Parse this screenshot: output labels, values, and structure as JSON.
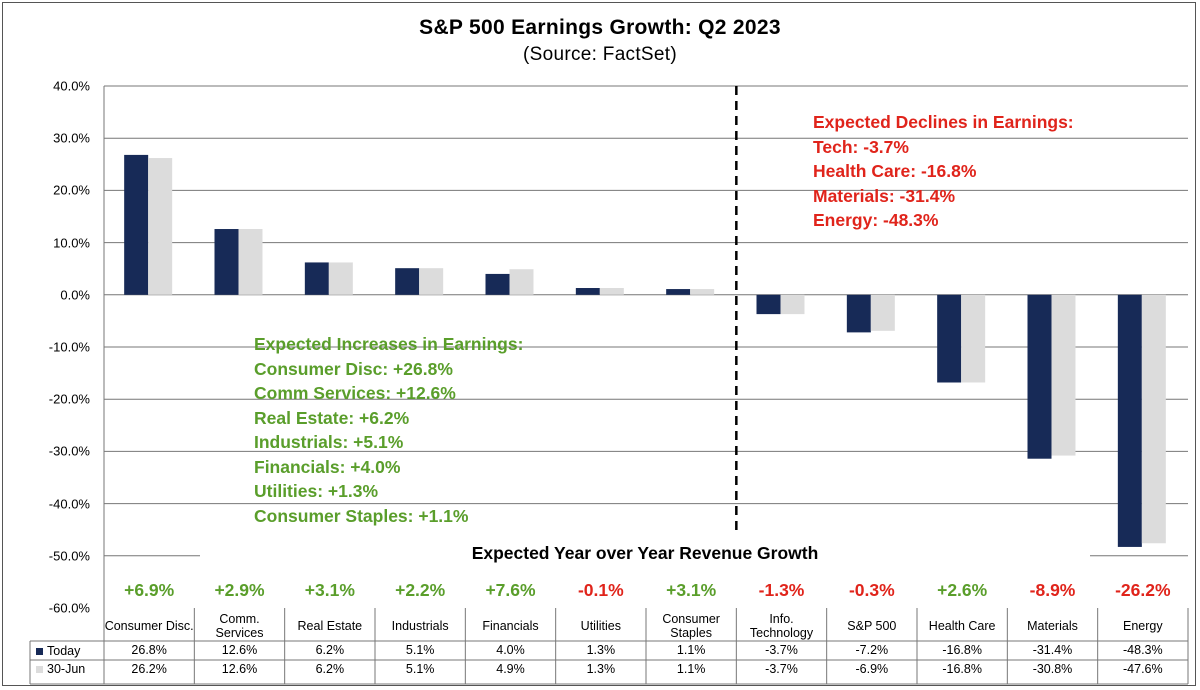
{
  "colors": {
    "today": "#172a57",
    "jun30": "#dcdcdc",
    "positive": "#5a9e2b",
    "negative": "#e0241b"
  },
  "chart_data": {
    "type": "bar",
    "title": "S&P 500 Earnings Growth: Q2 2023",
    "subtitle": "(Source: FactSet)",
    "ylim": [
      -60,
      40
    ],
    "yticks": [
      "40.0%",
      "30.0%",
      "20.0%",
      "10.0%",
      "0.0%",
      "-10.0%",
      "-20.0%",
      "-30.0%",
      "-40.0%",
      "-50.0%",
      "-60.0%"
    ],
    "categories": [
      "Consumer Disc.",
      "Comm. Services",
      "Real Estate",
      "Industrials",
      "Financials",
      "Utilities",
      "Consumer Staples",
      "Info. Technology",
      "S&P 500",
      "Health Care",
      "Materials",
      "Energy"
    ],
    "series": [
      {
        "name": "Today",
        "values": [
          26.8,
          12.6,
          6.2,
          5.1,
          4.0,
          1.3,
          1.1,
          -3.7,
          -7.2,
          -16.8,
          -31.4,
          -48.3
        ],
        "labels": [
          "26.8%",
          "12.6%",
          "6.2%",
          "5.1%",
          "4.0%",
          "1.3%",
          "1.1%",
          "-3.7%",
          "-7.2%",
          "-16.8%",
          "-31.4%",
          "-48.3%"
        ]
      },
      {
        "name": "30-Jun",
        "values": [
          26.2,
          12.6,
          6.2,
          5.1,
          4.9,
          1.3,
          1.1,
          -3.7,
          -6.9,
          -16.8,
          -30.8,
          -47.6
        ],
        "labels": [
          "26.2%",
          "12.6%",
          "6.2%",
          "5.1%",
          "4.9%",
          "1.3%",
          "1.1%",
          "-3.7%",
          "-6.9%",
          "-16.8%",
          "-30.8%",
          "-47.6%"
        ]
      }
    ],
    "revenue_growth": {
      "title": "Expected Year over Year Revenue Growth",
      "values": [
        "+6.9%",
        "+2.9%",
        "+3.1%",
        "+2.2%",
        "+7.6%",
        "-0.1%",
        "+3.1%",
        "-1.3%",
        "-0.3%",
        "+2.6%",
        "-8.9%",
        "-26.2%"
      ]
    },
    "annotations": {
      "declines": [
        "Expected Declines in Earnings:",
        "Tech: -3.7%",
        "Health Care: -16.8%",
        "Materials: -31.4%",
        "Energy: -48.3%"
      ],
      "increases": [
        "Expected Increases in Earnings:",
        "Consumer Disc: +26.8%",
        "Comm Services: +12.6%",
        "Real Estate: +6.2%",
        "Industrials: +5.1%",
        "Financials: +4.0%",
        "Utilities: +1.3%",
        "Consumer Staples: +1.1%"
      ]
    },
    "grid": true,
    "divider_after_category": "Consumer Staples"
  }
}
